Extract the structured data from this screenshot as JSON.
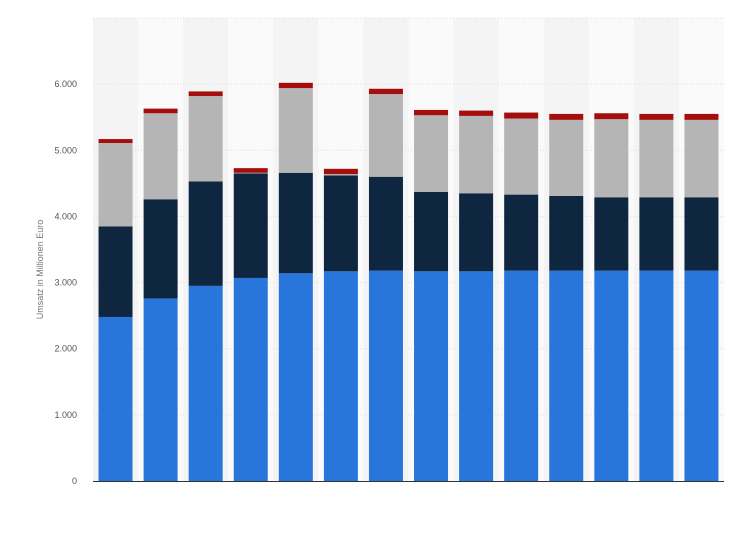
{
  "chart_data": {
    "type": "bar",
    "stacked": true,
    "ylabel": "Umsatz in Millionen Euro",
    "ylim": [
      0,
      7000
    ],
    "yticks": [
      {
        "value": 0,
        "label": "0"
      },
      {
        "value": 1000,
        "label": "1.000"
      },
      {
        "value": 2000,
        "label": "2.000"
      },
      {
        "value": 3000,
        "label": "3.000"
      },
      {
        "value": 4000,
        "label": "4.000"
      },
      {
        "value": 5000,
        "label": "5.000"
      },
      {
        "value": 6000,
        "label": "6.000"
      }
    ],
    "grid": true,
    "categories": [
      "",
      "",
      "",
      "",
      "",
      "",
      "",
      "",
      "",
      "",
      "",
      "",
      "",
      ""
    ],
    "series": [
      {
        "color": "#2875dc",
        "values": [
          2480,
          2760,
          2950,
          3070,
          3140,
          3170,
          3180,
          3170,
          3170,
          3180,
          3180,
          3180,
          3180,
          3180
        ]
      },
      {
        "color": "#0e2640",
        "values": [
          1370,
          1500,
          1580,
          1580,
          1520,
          1450,
          1420,
          1200,
          1180,
          1150,
          1130,
          1110,
          1110,
          1110
        ]
      },
      {
        "color": "#b5b5b5",
        "values": [
          1260,
          1300,
          1290,
          10,
          1280,
          20,
          1250,
          1160,
          1170,
          1150,
          1150,
          1180,
          1170,
          1170
        ]
      },
      {
        "color": "#a60d0d",
        "values": [
          60,
          70,
          70,
          70,
          80,
          80,
          80,
          80,
          80,
          90,
          90,
          90,
          90,
          90
        ]
      }
    ]
  }
}
